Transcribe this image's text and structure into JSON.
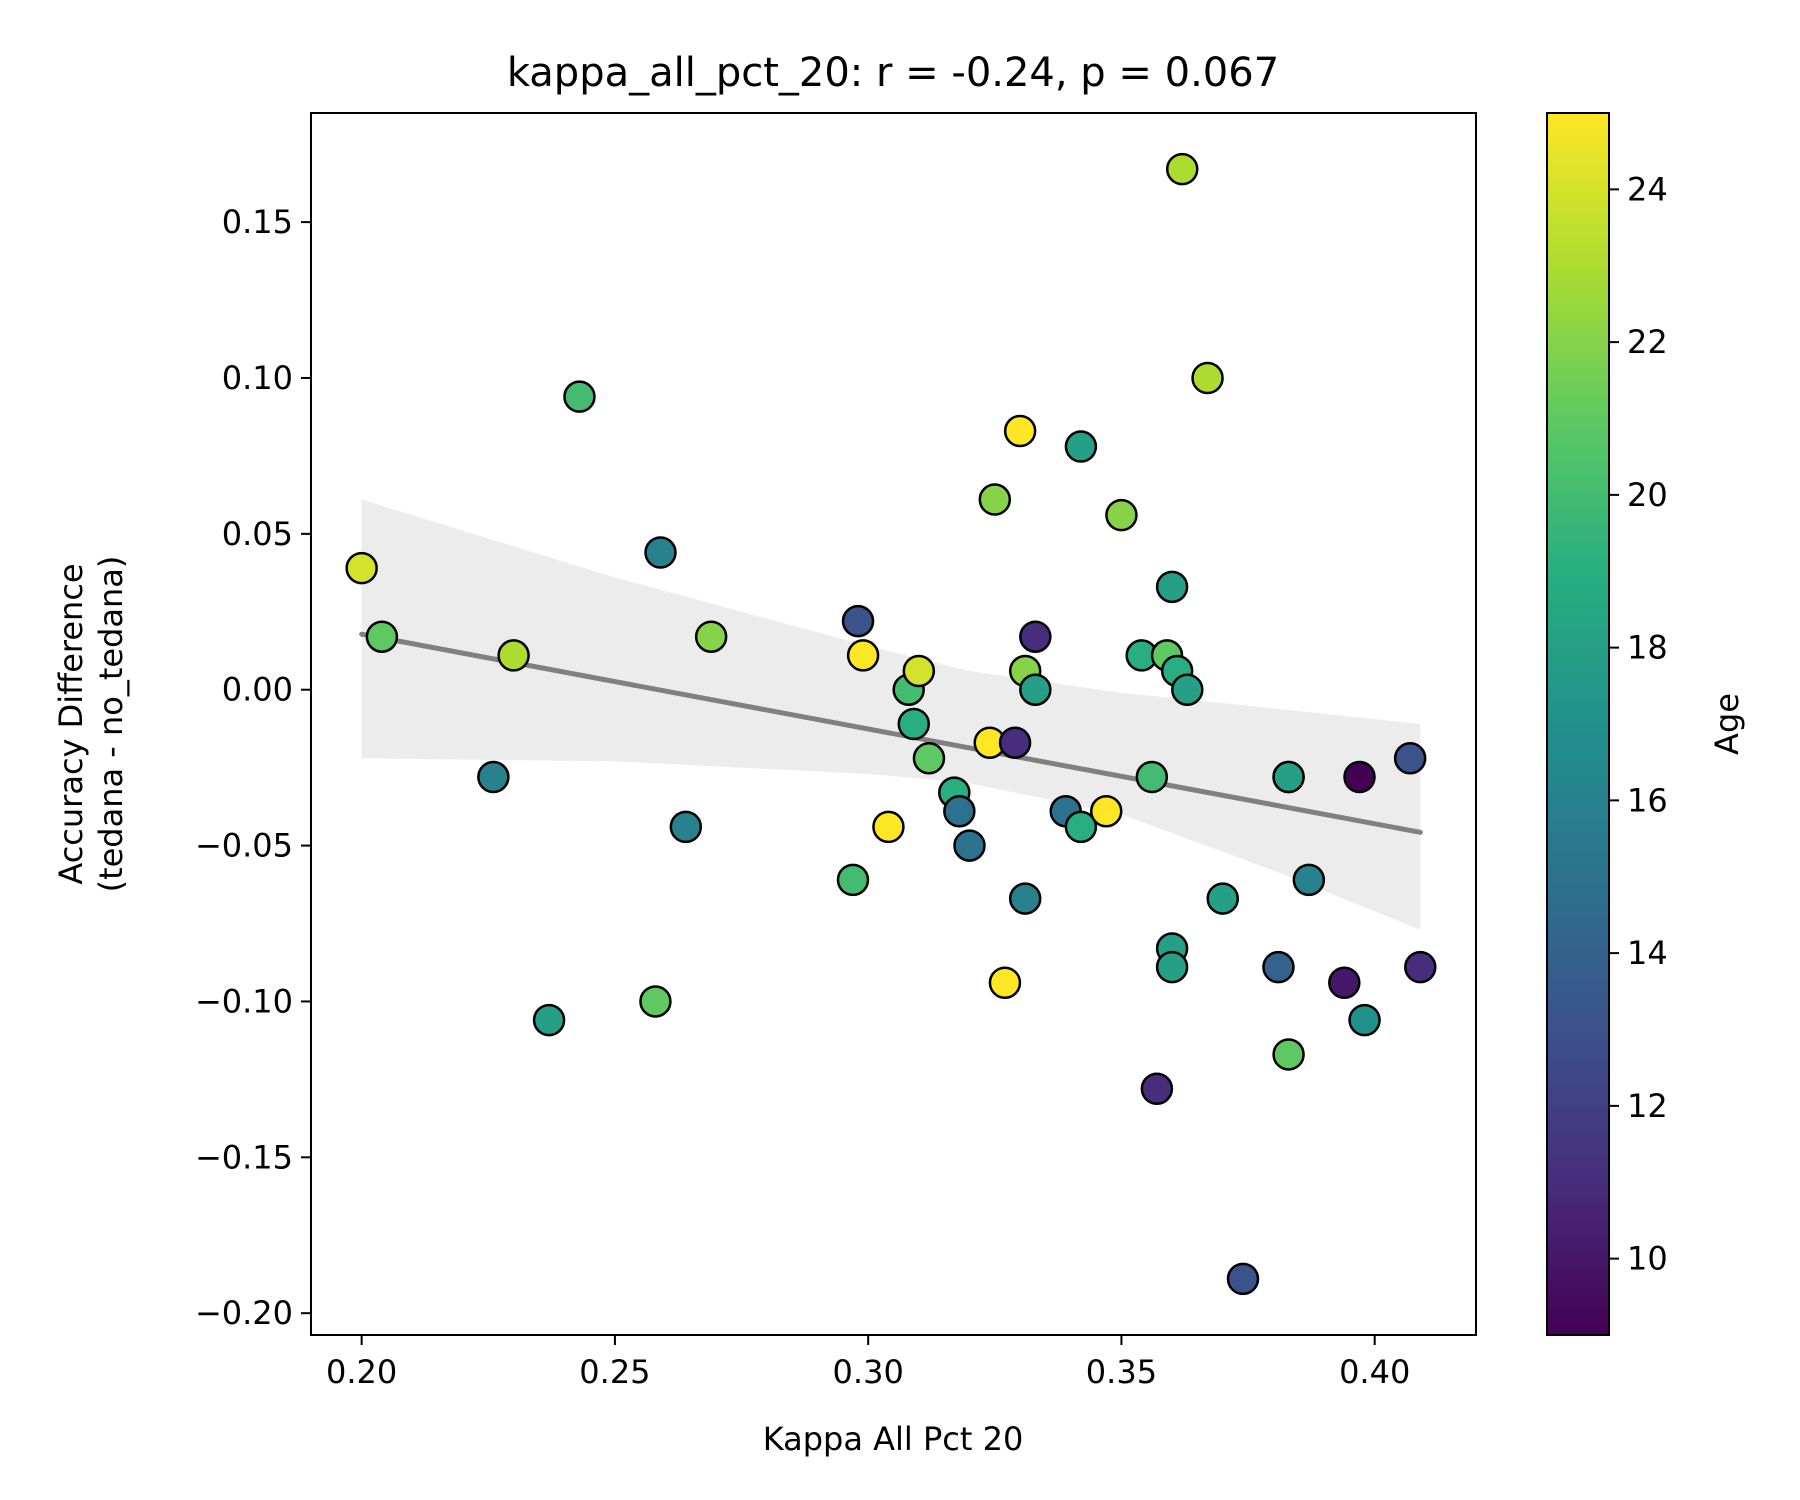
{
  "chart_data": {
    "type": "scatter",
    "title": "kappa_all_pct_20: r = -0.24, p = 0.067",
    "xlabel": "Kappa All Pct 20",
    "ylabel_line1": "Accuracy Difference",
    "ylabel_line2": "(tedana - no_tedana)",
    "xlim": [
      0.19,
      0.42
    ],
    "ylim": [
      -0.207,
      0.185
    ],
    "xticks": [
      0.2,
      0.25,
      0.3,
      0.35,
      0.4
    ],
    "xtick_labels": [
      "0.20",
      "0.25",
      "0.30",
      "0.35",
      "0.40"
    ],
    "yticks": [
      0.15,
      0.1,
      0.05,
      0.0,
      -0.05,
      -0.1,
      -0.15,
      -0.2
    ],
    "ytick_labels": [
      "0.15",
      "0.10",
      "0.05",
      "0.00",
      "−0.05",
      "−0.10",
      "−0.15",
      "−0.20"
    ],
    "colorbar": {
      "label": "Age",
      "range": [
        9,
        25
      ],
      "ticks": [
        10,
        12,
        14,
        16,
        18,
        20,
        22,
        24
      ],
      "tick_labels": [
        "10",
        "12",
        "14",
        "16",
        "18",
        "20",
        "22",
        "24"
      ],
      "colormap": "viridis"
    },
    "regression": {
      "x_range": [
        0.2,
        0.409
      ],
      "slope": -0.304,
      "intercept": 0.0786,
      "line_color": "#808080",
      "ci_color": "#ececec",
      "ci_upper": [
        [
          0.2,
          0.061
        ],
        [
          0.25,
          0.036
        ],
        [
          0.3,
          0.014
        ],
        [
          0.32,
          0.006
        ],
        [
          0.35,
          -0.001
        ],
        [
          0.38,
          -0.006
        ],
        [
          0.409,
          -0.011
        ]
      ],
      "ci_lower": [
        [
          0.2,
          -0.022
        ],
        [
          0.25,
          -0.023
        ],
        [
          0.3,
          -0.027
        ],
        [
          0.32,
          -0.03
        ],
        [
          0.35,
          -0.04
        ],
        [
          0.38,
          -0.058
        ],
        [
          0.409,
          -0.077
        ]
      ]
    },
    "points": [
      {
        "x": 0.2,
        "y": 0.039,
        "age": 24
      },
      {
        "x": 0.204,
        "y": 0.017,
        "age": 21
      },
      {
        "x": 0.226,
        "y": -0.028,
        "age": 16
      },
      {
        "x": 0.23,
        "y": 0.011,
        "age": 23
      },
      {
        "x": 0.237,
        "y": -0.106,
        "age": 18
      },
      {
        "x": 0.243,
        "y": 0.094,
        "age": 20
      },
      {
        "x": 0.258,
        "y": -0.1,
        "age": 21
      },
      {
        "x": 0.259,
        "y": 0.044,
        "age": 16
      },
      {
        "x": 0.264,
        "y": -0.044,
        "age": 16
      },
      {
        "x": 0.269,
        "y": 0.017,
        "age": 22
      },
      {
        "x": 0.297,
        "y": -0.061,
        "age": 20
      },
      {
        "x": 0.298,
        "y": 0.022,
        "age": 13
      },
      {
        "x": 0.299,
        "y": 0.011,
        "age": 25
      },
      {
        "x": 0.304,
        "y": -0.044,
        "age": 25
      },
      {
        "x": 0.308,
        "y": 0.0,
        "age": 20
      },
      {
        "x": 0.309,
        "y": -0.011,
        "age": 19
      },
      {
        "x": 0.31,
        "y": 0.006,
        "age": 24
      },
      {
        "x": 0.312,
        "y": -0.022,
        "age": 21
      },
      {
        "x": 0.317,
        "y": -0.033,
        "age": 19
      },
      {
        "x": 0.318,
        "y": -0.039,
        "age": 15
      },
      {
        "x": 0.32,
        "y": -0.05,
        "age": 15
      },
      {
        "x": 0.324,
        "y": -0.017,
        "age": 25
      },
      {
        "x": 0.325,
        "y": 0.061,
        "age": 22
      },
      {
        "x": 0.327,
        "y": -0.094,
        "age": 25
      },
      {
        "x": 0.329,
        "y": -0.017,
        "age": 11
      },
      {
        "x": 0.33,
        "y": 0.083,
        "age": 25
      },
      {
        "x": 0.331,
        "y": 0.006,
        "age": 22
      },
      {
        "x": 0.331,
        "y": -0.067,
        "age": 16
      },
      {
        "x": 0.333,
        "y": 0.0,
        "age": 18
      },
      {
        "x": 0.333,
        "y": 0.017,
        "age": 11
      },
      {
        "x": 0.339,
        "y": -0.039,
        "age": 15
      },
      {
        "x": 0.342,
        "y": -0.044,
        "age": 19
      },
      {
        "x": 0.342,
        "y": 0.078,
        "age": 18
      },
      {
        "x": 0.347,
        "y": -0.039,
        "age": 25
      },
      {
        "x": 0.35,
        "y": 0.056,
        "age": 22
      },
      {
        "x": 0.354,
        "y": 0.011,
        "age": 19
      },
      {
        "x": 0.356,
        "y": -0.028,
        "age": 20
      },
      {
        "x": 0.357,
        "y": -0.128,
        "age": 11
      },
      {
        "x": 0.359,
        "y": 0.011,
        "age": 21
      },
      {
        "x": 0.36,
        "y": 0.033,
        "age": 18
      },
      {
        "x": 0.36,
        "y": -0.083,
        "age": 18
      },
      {
        "x": 0.36,
        "y": -0.089,
        "age": 18
      },
      {
        "x": 0.361,
        "y": 0.006,
        "age": 19
      },
      {
        "x": 0.362,
        "y": 0.167,
        "age": 23
      },
      {
        "x": 0.363,
        "y": 0.0,
        "age": 18
      },
      {
        "x": 0.367,
        "y": 0.1,
        "age": 23
      },
      {
        "x": 0.37,
        "y": -0.067,
        "age": 18
      },
      {
        "x": 0.374,
        "y": -0.189,
        "age": 13
      },
      {
        "x": 0.381,
        "y": -0.089,
        "age": 14
      },
      {
        "x": 0.383,
        "y": -0.028,
        "age": 19
      },
      {
        "x": 0.383,
        "y": -0.028,
        "age": 18
      },
      {
        "x": 0.383,
        "y": -0.117,
        "age": 21
      },
      {
        "x": 0.387,
        "y": -0.061,
        "age": 16
      },
      {
        "x": 0.394,
        "y": -0.094,
        "age": 10
      },
      {
        "x": 0.397,
        "y": -0.028,
        "age": 9
      },
      {
        "x": 0.398,
        "y": -0.106,
        "age": 17
      },
      {
        "x": 0.407,
        "y": -0.022,
        "age": 13
      },
      {
        "x": 0.409,
        "y": -0.089,
        "age": 11
      }
    ]
  }
}
